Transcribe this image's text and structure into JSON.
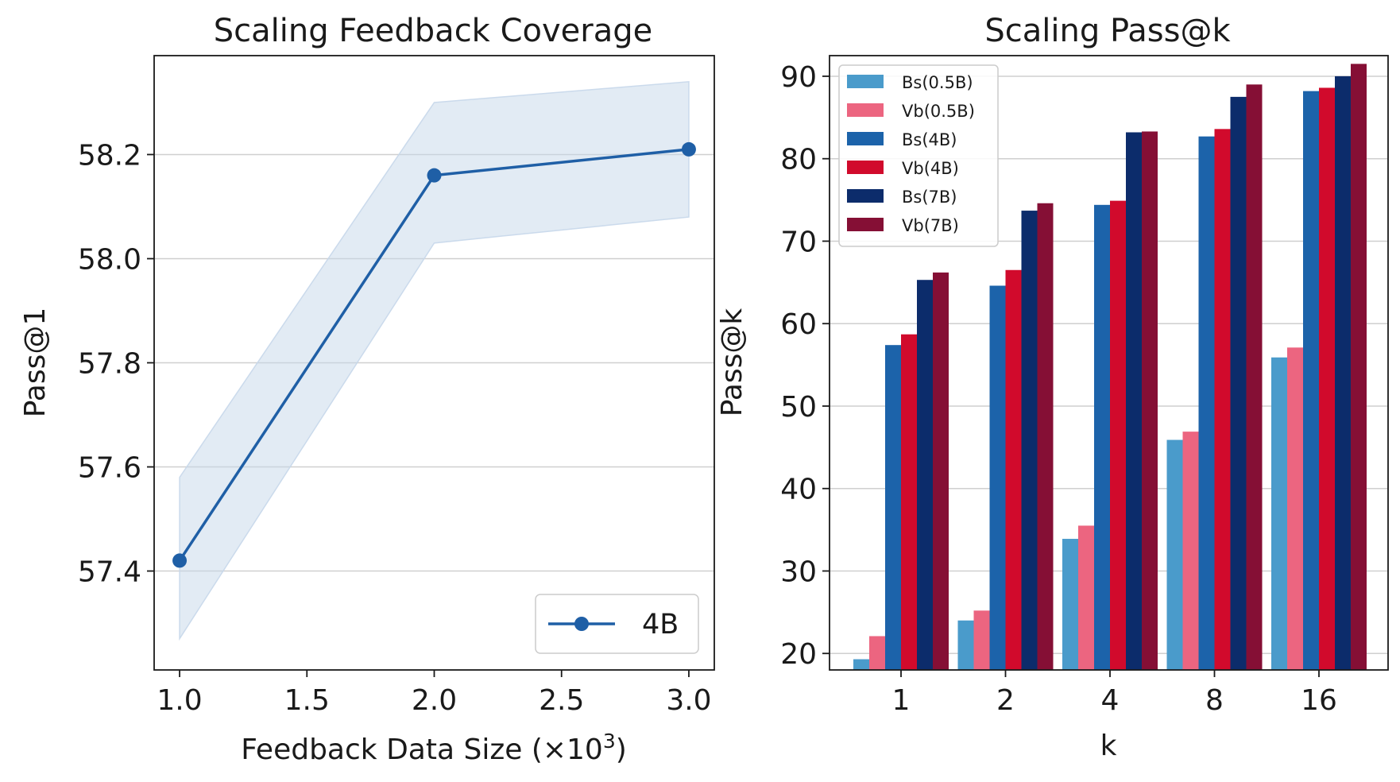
{
  "chart_data": [
    {
      "type": "line",
      "title": "Scaling Feedback Coverage",
      "xlabel": "Feedback Data Size (×10",
      "xlabel_exponent": "3",
      "xlabel_suffix": ")",
      "ylabel": "Pass@1",
      "xlim": [
        0.9,
        3.1
      ],
      "ylim": [
        57.21,
        58.39
      ],
      "x_ticks": [
        1.0,
        1.5,
        2.0,
        2.5,
        3.0
      ],
      "x_tick_labels": [
        "1.0",
        "1.5",
        "2.0",
        "2.5",
        "3.0"
      ],
      "y_ticks": [
        57.4,
        57.6,
        57.8,
        58.0,
        58.2
      ],
      "y_tick_labels": [
        "57.4",
        "57.6",
        "57.8",
        "58.0",
        "58.2"
      ],
      "grid": "horizontal",
      "legend_position": "lower-right",
      "series": [
        {
          "name": "4B",
          "color": "#1f5fa6",
          "band_color": "#c6d7ea",
          "x": [
            1.0,
            2.0,
            3.0
          ],
          "y": [
            57.42,
            58.16,
            58.21
          ],
          "lower": [
            57.27,
            58.03,
            58.08
          ],
          "upper": [
            57.58,
            58.3,
            58.34
          ]
        }
      ]
    },
    {
      "type": "bar",
      "title": "Scaling Pass@k",
      "xlabel": "k",
      "ylabel": "Pass@k",
      "categories": [
        "1",
        "2",
        "4",
        "8",
        "16"
      ],
      "ylim": [
        18,
        92.5
      ],
      "y_ticks": [
        20,
        30,
        40,
        50,
        60,
        70,
        80,
        90
      ],
      "y_tick_labels": [
        "20",
        "30",
        "40",
        "50",
        "60",
        "70",
        "80",
        "90"
      ],
      "grid": "horizontal",
      "legend_position": "top-left",
      "series": [
        {
          "name": "Bs(0.5B)",
          "color": "#4a9bcb",
          "values": [
            19.3,
            24.0,
            33.9,
            45.9,
            55.9
          ]
        },
        {
          "name": "Vb(0.5B)",
          "color": "#ec6580",
          "values": [
            22.1,
            25.2,
            35.5,
            46.9,
            57.1
          ]
        },
        {
          "name": "Bs(4B)",
          "color": "#1c63aa",
          "values": [
            57.4,
            64.6,
            74.4,
            82.7,
            88.2
          ]
        },
        {
          "name": "Vb(4B)",
          "color": "#d10a2c",
          "values": [
            58.7,
            66.5,
            74.9,
            83.6,
            88.6
          ]
        },
        {
          "name": "Bs(7B)",
          "color": "#0c2c6b",
          "values": [
            65.3,
            73.7,
            83.2,
            87.5,
            90.0
          ]
        },
        {
          "name": "Vb(7B)",
          "color": "#850f35",
          "values": [
            66.2,
            74.6,
            83.3,
            89.0,
            91.5
          ]
        }
      ]
    }
  ]
}
